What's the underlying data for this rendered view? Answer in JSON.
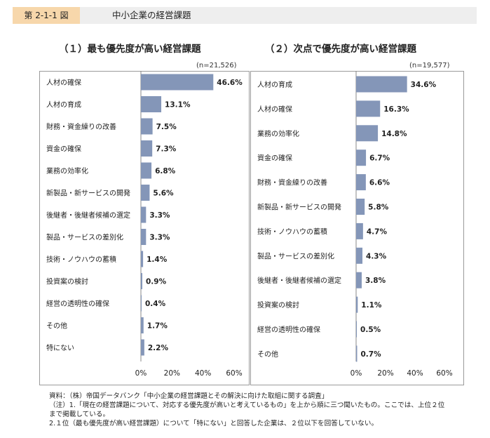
{
  "header": {
    "label": "第 2-1-1 図",
    "title": "中小企業の経営課題"
  },
  "colors": {
    "bar": "#8496b8",
    "axis": "#888888",
    "header_accent": "#f7d7ab"
  },
  "chart_data": [
    {
      "type": "bar",
      "orientation": "horizontal",
      "title": "（１）最も優先度が高い経営課題",
      "n_label": "(n=21,526)",
      "categories": [
        "人材の確保",
        "人材の育成",
        "財務・資金繰りの改善",
        "資金の確保",
        "業務の効率化",
        "新製品・新サービスの開発",
        "後継者・後継者候補の選定",
        "製品・サービスの差別化",
        "技術・ノウハウの蓄積",
        "投資案の検討",
        "経営の透明性の確保",
        "その他",
        "特にない"
      ],
      "values": [
        46.6,
        13.1,
        7.5,
        7.3,
        6.8,
        5.6,
        3.3,
        3.3,
        1.4,
        0.9,
        0.4,
        1.7,
        2.2
      ],
      "value_labels": [
        "46.6%",
        "13.1%",
        "7.5%",
        "7.3%",
        "6.8%",
        "5.6%",
        "3.3%",
        "3.3%",
        "1.4%",
        "0.9%",
        "0.4%",
        "1.7%",
        "2.2%"
      ],
      "xlim": [
        0,
        60
      ],
      "xticks": [
        "0%",
        "20%",
        "40%",
        "60%"
      ],
      "grid": false
    },
    {
      "type": "bar",
      "orientation": "horizontal",
      "title": "（２）次点で優先度が高い経営課題",
      "n_label": "(n=19,577)",
      "categories": [
        "人材の育成",
        "人材の確保",
        "業務の効率化",
        "資金の確保",
        "財務・資金繰りの改善",
        "新製品・新サービスの開発",
        "技術・ノウハウの蓄積",
        "製品・サービスの差別化",
        "後継者・後継者候補の選定",
        "投資案の検討",
        "経営の透明性の確保",
        "その他"
      ],
      "values": [
        34.6,
        16.3,
        14.8,
        6.7,
        6.6,
        5.8,
        4.7,
        4.3,
        3.8,
        1.1,
        0.5,
        0.7
      ],
      "value_labels": [
        "34.6%",
        "16.3%",
        "14.8%",
        "6.7%",
        "6.6%",
        "5.8%",
        "4.7%",
        "4.3%",
        "3.8%",
        "1.1%",
        "0.5%",
        "0.7%"
      ],
      "xlim": [
        0,
        60
      ],
      "xticks": [
        "0%",
        "20%",
        "40%",
        "60%"
      ],
      "grid": false
    }
  ],
  "notes": [
    "資料：（株）帝国データバンク「中小企業の経営課題とその解決に向けた取組に関する調査」",
    "（注）1.「現在の経営課題について、対応する優先度が高いと考えているもの」を上から順に三つ聞いたもの。ここでは、上位２位",
    "まで掲載している。",
    "2.１位（最も優先度が高い経営課題）について「特にない」と回答した企業は、２位以下を回答していない。"
  ]
}
